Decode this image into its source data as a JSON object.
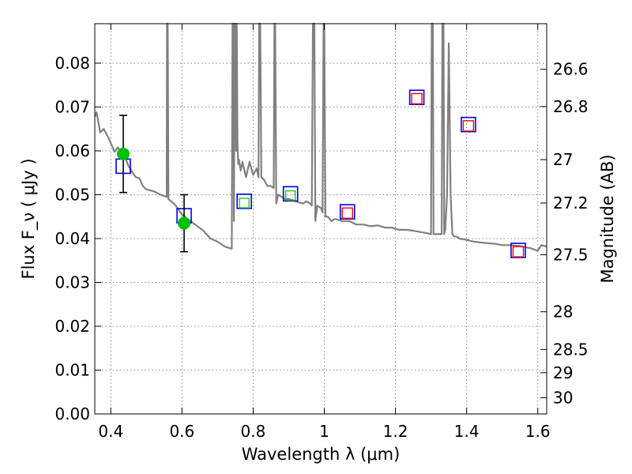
{
  "chart_data": {
    "type": "scatter",
    "xlabel": "Wavelength  λ (μm)",
    "ylabel": "Flux  F_ν  ( μJy )",
    "ylabel_right": "Magnitude (AB)",
    "xlim": [
      0.355,
      1.625
    ],
    "ylim": [
      0.0,
      0.089
    ],
    "grid": true,
    "x_ticks": [
      0.4,
      0.6,
      0.8,
      1.0,
      1.2,
      1.4,
      1.6
    ],
    "x_tick_labels": [
      "0.4",
      "0.6",
      "0.8",
      "1",
      "1.2",
      "1.4",
      "1.6"
    ],
    "y_ticks": [
      0.0,
      0.01,
      0.02,
      0.03,
      0.04,
      0.05,
      0.06,
      0.07,
      0.08
    ],
    "y_tick_labels": [
      "0.00",
      "0.01",
      "0.02",
      "0.03",
      "0.04",
      "0.05",
      "0.06",
      "0.07",
      "0.08"
    ],
    "right_ticks": [
      {
        "label": "26.6",
        "flux": 0.0786
      },
      {
        "label": "26.8",
        "flux": 0.0701
      },
      {
        "label": "27",
        "flux": 0.058
      },
      {
        "label": "27.2",
        "flux": 0.0481
      },
      {
        "label": "27.5",
        "flux": 0.0363
      },
      {
        "label": "28",
        "flux": 0.0233
      },
      {
        "label": "28.5",
        "flux": 0.0147
      },
      {
        "label": "29",
        "flux": 0.0094
      },
      {
        "label": "30",
        "flux": 0.0037
      }
    ],
    "series": [
      {
        "kind": "observed",
        "color": "#00c000",
        "x": [
          0.435,
          0.606
        ],
        "y": [
          0.0593,
          0.0435
        ],
        "yerr": [
          0.0088,
          0.0065
        ]
      },
      {
        "kind": "model_bands",
        "color": "#0000ff",
        "x": [
          0.435,
          0.606,
          0.775,
          0.905,
          1.065,
          1.26,
          1.405,
          1.545
        ],
        "y": [
          0.0565,
          0.0452,
          0.0485,
          0.0502,
          0.0461,
          0.0722,
          0.066,
          0.0373
        ]
      },
      {
        "kind": "model_bands_small",
        "color": "#ff0000",
        "x": [
          1.065,
          1.26,
          1.405,
          1.545
        ],
        "y": [
          0.0458,
          0.0719,
          0.0657,
          0.037
        ]
      },
      {
        "kind": "model_bands_green",
        "color": "#00c000",
        "x": [
          0.775,
          0.905
        ],
        "y": [
          0.0481,
          0.0498
        ]
      },
      {
        "kind": "template_spectrum",
        "color": "#808080",
        "x": [
          0.355,
          0.36,
          0.37,
          0.38,
          0.39,
          0.4,
          0.41,
          0.42,
          0.43,
          0.44,
          0.45,
          0.46,
          0.47,
          0.48,
          0.49,
          0.5,
          0.52,
          0.54,
          0.557,
          0.558,
          0.56,
          0.562,
          0.58,
          0.6,
          0.62,
          0.64,
          0.66,
          0.68,
          0.7,
          0.72,
          0.735,
          0.74,
          0.742,
          0.745,
          0.746,
          0.748,
          0.75,
          0.752,
          0.754,
          0.756,
          0.758,
          0.76,
          0.765,
          0.77,
          0.78,
          0.79,
          0.8,
          0.81,
          0.815,
          0.817,
          0.82,
          0.823,
          0.83,
          0.84,
          0.85,
          0.858,
          0.86,
          0.862,
          0.865,
          0.87,
          0.88,
          0.89,
          0.9,
          0.91,
          0.92,
          0.93,
          0.94,
          0.95,
          0.96,
          0.965,
          0.968,
          0.97,
          0.972,
          0.975,
          0.98,
          0.99,
          0.995,
          0.998,
          1.0,
          1.003,
          1.01,
          1.02,
          1.03,
          1.05,
          1.07,
          1.09,
          1.11,
          1.13,
          1.15,
          1.17,
          1.19,
          1.21,
          1.23,
          1.25,
          1.27,
          1.29,
          1.3,
          1.302,
          1.305,
          1.307,
          1.31,
          1.32,
          1.33,
          1.332,
          1.335,
          1.337,
          1.34,
          1.345,
          1.35,
          1.355,
          1.36,
          1.365,
          1.37,
          1.38,
          1.4,
          1.42,
          1.45,
          1.48,
          1.5,
          1.52,
          1.55,
          1.58,
          1.6,
          1.61,
          1.625
        ],
        "y": [
          0.0678,
          0.0688,
          0.0642,
          0.065,
          0.0635,
          0.0618,
          0.0598,
          0.0608,
          0.0592,
          0.0585,
          0.0565,
          0.0552,
          0.054,
          0.0538,
          0.052,
          0.0512,
          0.0508,
          0.05,
          0.0495,
          0.09,
          0.09,
          0.049,
          0.0478,
          0.0455,
          0.0442,
          0.043,
          0.0418,
          0.04,
          0.0393,
          0.0382,
          0.0378,
          0.0377,
          0.09,
          0.09,
          0.044,
          0.09,
          0.09,
          0.06,
          0.09,
          0.062,
          0.057,
          0.058,
          0.0555,
          0.0575,
          0.054,
          0.0575,
          0.0545,
          0.056,
          0.054,
          0.09,
          0.09,
          0.054,
          0.0535,
          0.052,
          0.052,
          0.0515,
          0.09,
          0.09,
          0.048,
          0.05,
          0.0495,
          0.049,
          0.049,
          0.0488,
          0.0485,
          0.0482,
          0.048,
          0.0485,
          0.048,
          0.0475,
          0.09,
          0.09,
          0.09,
          0.044,
          0.0475,
          0.047,
          0.046,
          0.09,
          0.09,
          0.045,
          0.045,
          0.044,
          0.0445,
          0.044,
          0.044,
          0.0432,
          0.0432,
          0.0428,
          0.043,
          0.0425,
          0.0425,
          0.042,
          0.042,
          0.0418,
          0.0415,
          0.0412,
          0.041,
          0.09,
          0.09,
          0.041,
          0.041,
          0.041,
          0.041,
          0.09,
          0.09,
          0.041,
          0.042,
          0.05,
          0.0845,
          0.05,
          0.041,
          0.0405,
          0.0405,
          0.04,
          0.0397,
          0.0393,
          0.039,
          0.0388,
          0.0385,
          0.0385,
          0.0383,
          0.0378,
          0.0372,
          0.0385,
          0.0382
        ]
      }
    ]
  }
}
